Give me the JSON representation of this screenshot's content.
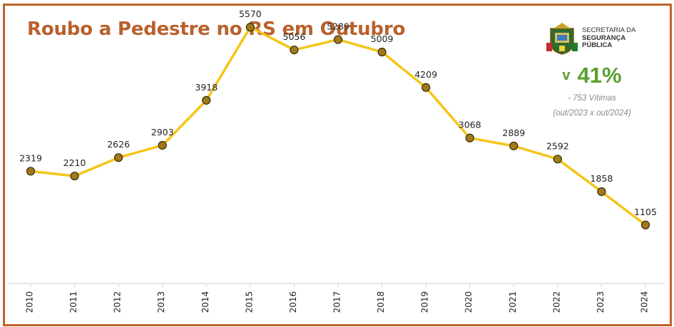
{
  "header": {
    "title": "Roubo a Pedestre no RS em Outubro"
  },
  "logo": {
    "line1": "SECRETARIA DA",
    "line2": "SEGURANÇA",
    "line3": "PÚBLICA",
    "icon": "rs-coat-of-arms-icon"
  },
  "stat": {
    "arrow": "v",
    "percent": "41%",
    "victims": "- 753 Vítimas",
    "period": "(out/2023 x out/2024)",
    "color": "#5aa02c"
  },
  "colors": {
    "border": "#c0632a",
    "title": "#b8612c",
    "line": "#f5c518",
    "marker": "#a07a1a",
    "marker_stroke": "#3a2a05"
  },
  "chart_data": {
    "type": "line",
    "title": "Roubo a Pedestre no RS em Outubro",
    "xlabel": "",
    "ylabel": "",
    "categories": [
      "2010",
      "2011",
      "2012",
      "2013",
      "2014",
      "2015",
      "2016",
      "2017",
      "2018",
      "2019",
      "2020",
      "2021",
      "2022",
      "2023",
      "2024"
    ],
    "series": [
      {
        "values": [
          2319,
          2210,
          2626,
          2903,
          3918,
          5570,
          5056,
          5289,
          5009,
          4209,
          3068,
          2889,
          2592,
          1858,
          1105
        ]
      }
    ],
    "data_labels": true,
    "ylim": [
      0,
      6000
    ],
    "grid": false,
    "legend": "none"
  }
}
